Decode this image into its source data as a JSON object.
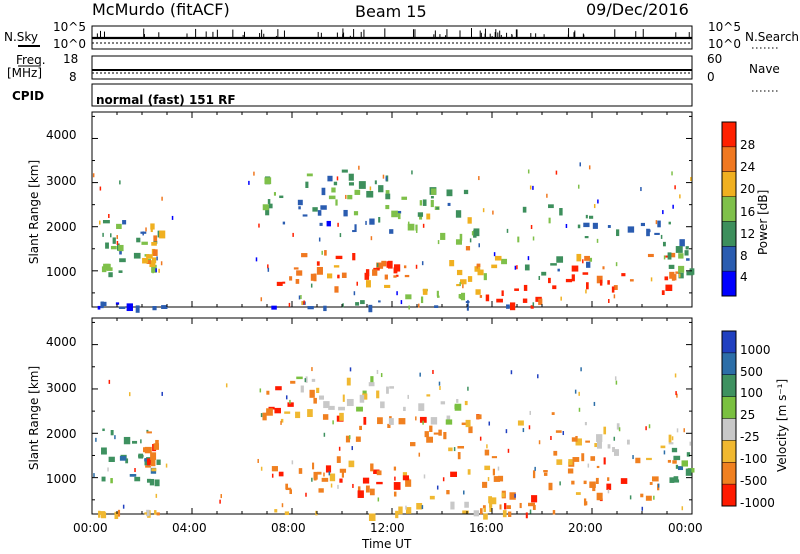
{
  "header": {
    "station": "McMurdo (fitACF)",
    "beam": "Beam 15",
    "date": "09/Dec/2016"
  },
  "sky_panel": {
    "left_label": "N.Sky",
    "right_label": "N.Search",
    "left_ticks": [
      "10^5",
      "10^0"
    ],
    "right_ticks": [
      "10^5",
      "10^0"
    ]
  },
  "freq_panel": {
    "left_label_1": "Freq.",
    "left_label_2": "[MHz]",
    "left_ticks": [
      "18",
      "8"
    ],
    "right_label": "Nave",
    "right_ticks": [
      "60",
      "0"
    ]
  },
  "cpid": {
    "label": "CPID",
    "mode": "normal (fast) 151 RF"
  },
  "chart_data": [
    {
      "type": "heatmap",
      "name": "power",
      "ylabel": "Slant Range [km]",
      "yticks": [
        "4000",
        "3000",
        "2000",
        "1000"
      ],
      "ylim": [
        180,
        4600
      ],
      "x_range_hours": [
        0,
        24
      ],
      "colorbar_label": "Power [dB]",
      "colorbar_ticks": [
        "28",
        "24",
        "20",
        "16",
        "12",
        "8",
        "4"
      ],
      "colors": [
        "#0000ff",
        "#2a5cb0",
        "#3d8f5c",
        "#7fc04a",
        "#f0b020",
        "#f07820",
        "#ff2000"
      ]
    },
    {
      "type": "heatmap",
      "name": "velocity",
      "ylabel": "Slant Range [km]",
      "yticks": [
        "4000",
        "3000",
        "2000",
        "1000"
      ],
      "ylim": [
        180,
        4600
      ],
      "xlabel": "Time UT",
      "xticks": [
        "00:00",
        "04:00",
        "08:00",
        "12:00",
        "16:00",
        "20:00",
        "00:00"
      ],
      "colorbar_label": "Velocity [m s⁻¹]",
      "colorbar_ticks": [
        "1000",
        "500",
        "100",
        "25",
        "-25",
        "-100",
        "-500",
        "-1000"
      ],
      "colors": [
        "#2040c0",
        "#2c6ea8",
        "#3e9160",
        "#7ac040",
        "#c8c8c8",
        "#f0b830",
        "#f08020",
        "#ff1a00"
      ]
    }
  ]
}
